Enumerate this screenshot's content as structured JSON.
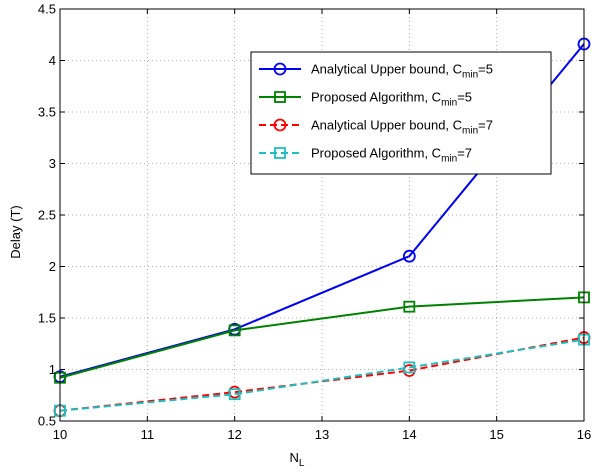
{
  "chart_data": {
    "type": "line",
    "title": "",
    "xlabel": "N",
    "xlabel_subscript": "L",
    "ylabel": "Delay (T)",
    "xlim": [
      10,
      16
    ],
    "ylim": [
      0.5,
      4.5
    ],
    "xticks": [
      10,
      11,
      12,
      13,
      14,
      15,
      16
    ],
    "xtick_labels": [
      "10",
      "11",
      "12",
      "13",
      "14",
      "15",
      "16"
    ],
    "yticks": [
      0.5,
      1,
      1.5,
      2,
      2.5,
      3,
      3.5,
      4,
      4.5
    ],
    "ytick_labels": [
      "0.5",
      "1",
      "1.5",
      "2",
      "2.5",
      "3",
      "3.5",
      "4",
      "4.5"
    ],
    "grid": true,
    "legend_placement": "top-right",
    "x": [
      10,
      12,
      14,
      16
    ],
    "series": [
      {
        "name_main": "Analytical Upper bound, C",
        "name_sub": "min",
        "name_tail": "=5",
        "values": [
          0.93,
          1.39,
          2.1,
          4.16
        ],
        "color": "#0000ee",
        "dash": "solid",
        "marker": "circle"
      },
      {
        "name_main": "Proposed Algorithm, C",
        "name_sub": "min",
        "name_tail": "=5",
        "values": [
          0.92,
          1.38,
          1.61,
          1.7
        ],
        "color": "#008000",
        "dash": "solid",
        "marker": "square"
      },
      {
        "name_main": "Analytical Upper bound, C",
        "name_sub": "min",
        "name_tail": "=7",
        "values": [
          0.6,
          0.78,
          0.99,
          1.31
        ],
        "color": "#ff0000",
        "dash": "dashed",
        "marker": "circle"
      },
      {
        "name_main": "Proposed Algorithm, C",
        "name_sub": "min",
        "name_tail": "=7",
        "values": [
          0.6,
          0.76,
          1.02,
          1.29
        ],
        "color": "#1fbfbf",
        "dash": "dashed",
        "marker": "square"
      }
    ]
  }
}
